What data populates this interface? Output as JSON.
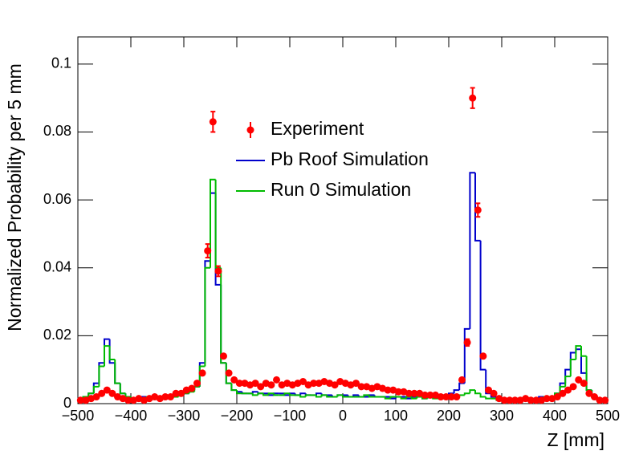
{
  "chart_data": {
    "type": "histogram",
    "xlabel": "Z [mm]",
    "ylabel": "Normalized Probability per 5 mm",
    "xlim": [
      -500,
      500
    ],
    "ylim": [
      0,
      0.108
    ],
    "xticks": [
      {
        "value": -500,
        "label": "−500"
      },
      {
        "value": -400,
        "label": "−400"
      },
      {
        "value": -300,
        "label": "−300"
      },
      {
        "value": -200,
        "label": "−200"
      },
      {
        "value": -100,
        "label": "−100"
      },
      0,
      100,
      200,
      300,
      400,
      500
    ],
    "yticks": [
      0,
      0.02,
      0.04,
      0.06,
      0.08,
      {
        "value": 0.1,
        "label": "0.1"
      }
    ],
    "bins": [
      -500,
      -490,
      -480,
      -470,
      -460,
      -450,
      -440,
      -430,
      -420,
      -410,
      -400,
      -390,
      -380,
      -370,
      -360,
      -350,
      -340,
      -330,
      -320,
      -310,
      -300,
      -290,
      -280,
      -270,
      -260,
      -250,
      -240,
      -230,
      -220,
      -210,
      -200,
      -190,
      -180,
      -170,
      -160,
      -150,
      -140,
      -130,
      -120,
      -110,
      -100,
      -90,
      -80,
      -70,
      -60,
      -50,
      -40,
      -30,
      -20,
      -10,
      0,
      10,
      20,
      30,
      40,
      50,
      60,
      70,
      80,
      90,
      100,
      110,
      120,
      130,
      140,
      150,
      160,
      170,
      180,
      190,
      200,
      210,
      220,
      230,
      240,
      250,
      260,
      270,
      280,
      290,
      300,
      310,
      320,
      330,
      340,
      350,
      360,
      370,
      380,
      390,
      400,
      410,
      420,
      430,
      440,
      450,
      460,
      470,
      480,
      490,
      500
    ],
    "series": [
      {
        "name": "Pb Roof Simulation",
        "color": "#0000cc",
        "style": "step",
        "values": [
          0.001,
          0.002,
          0.003,
          0.006,
          0.012,
          0.019,
          0.012,
          0.006,
          0.003,
          0.002,
          0.0015,
          0.0015,
          0.002,
          0.0015,
          0.002,
          0.002,
          0.0015,
          0.002,
          0.0025,
          0.003,
          0.003,
          0.004,
          0.005,
          0.012,
          0.042,
          0.062,
          0.035,
          0.012,
          0.006,
          0.004,
          0.0035,
          0.003,
          0.003,
          0.0035,
          0.003,
          0.003,
          0.0025,
          0.003,
          0.003,
          0.0025,
          0.003,
          0.0025,
          0.003,
          0.0025,
          0.0025,
          0.003,
          0.0025,
          0.0025,
          0.002,
          0.0025,
          0.0025,
          0.002,
          0.0025,
          0.002,
          0.002,
          0.0025,
          0.002,
          0.002,
          0.002,
          0.0015,
          0.002,
          0.002,
          0.0015,
          0.002,
          0.002,
          0.0015,
          0.002,
          0.002,
          0.0025,
          0.0025,
          0.003,
          0.004,
          0.006,
          0.022,
          0.068,
          0.048,
          0.01,
          0.003,
          0.002,
          0.0015,
          0.0015,
          0.001,
          0.0015,
          0.0015,
          0.001,
          0.0015,
          0.0015,
          0.002,
          0.0015,
          0.002,
          0.003,
          0.006,
          0.01,
          0.015,
          0.016,
          0.009,
          0.004,
          0.002,
          0.001,
          0.001
        ]
      },
      {
        "name": "Run 0 Simulation",
        "color": "#00bb00",
        "style": "step",
        "values": [
          0.001,
          0.002,
          0.003,
          0.005,
          0.011,
          0.017,
          0.013,
          0.006,
          0.003,
          0.002,
          0.0015,
          0.0015,
          0.0015,
          0.002,
          0.0015,
          0.002,
          0.0015,
          0.002,
          0.002,
          0.0025,
          0.003,
          0.0035,
          0.005,
          0.011,
          0.04,
          0.066,
          0.04,
          0.012,
          0.006,
          0.004,
          0.003,
          0.003,
          0.003,
          0.0025,
          0.003,
          0.0025,
          0.003,
          0.0025,
          0.0025,
          0.003,
          0.0025,
          0.0025,
          0.002,
          0.0025,
          0.0025,
          0.002,
          0.0025,
          0.002,
          0.002,
          0.0025,
          0.002,
          0.002,
          0.002,
          0.002,
          0.0025,
          0.002,
          0.002,
          0.002,
          0.0015,
          0.002,
          0.002,
          0.0015,
          0.002,
          0.0015,
          0.002,
          0.0015,
          0.002,
          0.0015,
          0.002,
          0.002,
          0.002,
          0.0025,
          0.0025,
          0.003,
          0.004,
          0.003,
          0.002,
          0.0015,
          0.0015,
          0.001,
          0.0015,
          0.001,
          0.0015,
          0.0015,
          0.001,
          0.0015,
          0.0015,
          0.0015,
          0.002,
          0.002,
          0.003,
          0.005,
          0.008,
          0.013,
          0.017,
          0.014,
          0.004,
          0.002,
          0.001,
          0.001
        ]
      },
      {
        "name": "Experiment",
        "color": "#ff0000",
        "style": "points",
        "values": [
          0.001,
          0.001,
          0.0015,
          0.002,
          0.003,
          0.004,
          0.003,
          0.002,
          0.0015,
          0.001,
          0.001,
          0.0015,
          0.001,
          0.0015,
          0.002,
          0.0015,
          0.002,
          0.002,
          0.003,
          0.003,
          0.004,
          0.0045,
          0.006,
          0.009,
          0.045,
          0.083,
          0.039,
          0.014,
          0.009,
          0.007,
          0.006,
          0.006,
          0.0055,
          0.006,
          0.005,
          0.006,
          0.0055,
          0.007,
          0.0055,
          0.006,
          0.0055,
          0.006,
          0.0065,
          0.0055,
          0.006,
          0.006,
          0.0065,
          0.006,
          0.0055,
          0.0065,
          0.006,
          0.0055,
          0.006,
          0.005,
          0.005,
          0.0045,
          0.005,
          0.0045,
          0.004,
          0.004,
          0.0035,
          0.0035,
          0.003,
          0.003,
          0.003,
          0.0025,
          0.0025,
          0.0025,
          0.002,
          0.002,
          0.002,
          0.002,
          0.007,
          0.018,
          0.09,
          0.057,
          0.014,
          0.004,
          0.003,
          0.0015,
          0.001,
          0.001,
          0.001,
          0.001,
          0.0015,
          0.001,
          0.001,
          0.001,
          0.0015,
          0.0015,
          0.002,
          0.003,
          0.004,
          0.005,
          0.007,
          0.006,
          0.003,
          0.002,
          0.001,
          0.001
        ],
        "errors": [
          0.0003,
          0.0003,
          0.0003,
          0.0003,
          0.0004,
          0.0004,
          0.0004,
          0.0003,
          0.0003,
          0.0003,
          0.0003,
          0.0003,
          0.0003,
          0.0003,
          0.0003,
          0.0003,
          0.0003,
          0.0003,
          0.0004,
          0.0004,
          0.0004,
          0.0004,
          0.0005,
          0.0007,
          0.002,
          0.003,
          0.0015,
          0.0008,
          0.0006,
          0.0005,
          0.0005,
          0.0005,
          0.0005,
          0.0005,
          0.0005,
          0.0005,
          0.0005,
          0.0005,
          0.0005,
          0.0005,
          0.0005,
          0.0005,
          0.0005,
          0.0005,
          0.0005,
          0.0005,
          0.0005,
          0.0005,
          0.0005,
          0.0005,
          0.0005,
          0.0005,
          0.0005,
          0.0005,
          0.0005,
          0.0004,
          0.0004,
          0.0004,
          0.0004,
          0.0004,
          0.0004,
          0.0004,
          0.0004,
          0.0004,
          0.0004,
          0.0003,
          0.0003,
          0.0003,
          0.0003,
          0.0003,
          0.0003,
          0.0003,
          0.0006,
          0.001,
          0.003,
          0.002,
          0.0008,
          0.0004,
          0.0004,
          0.0003,
          0.0003,
          0.0003,
          0.0003,
          0.0003,
          0.0003,
          0.0003,
          0.0003,
          0.0003,
          0.0003,
          0.0003,
          0.0003,
          0.0004,
          0.0004,
          0.0005,
          0.0006,
          0.0005,
          0.0004,
          0.0003,
          0.0003,
          0.0003
        ]
      }
    ]
  }
}
